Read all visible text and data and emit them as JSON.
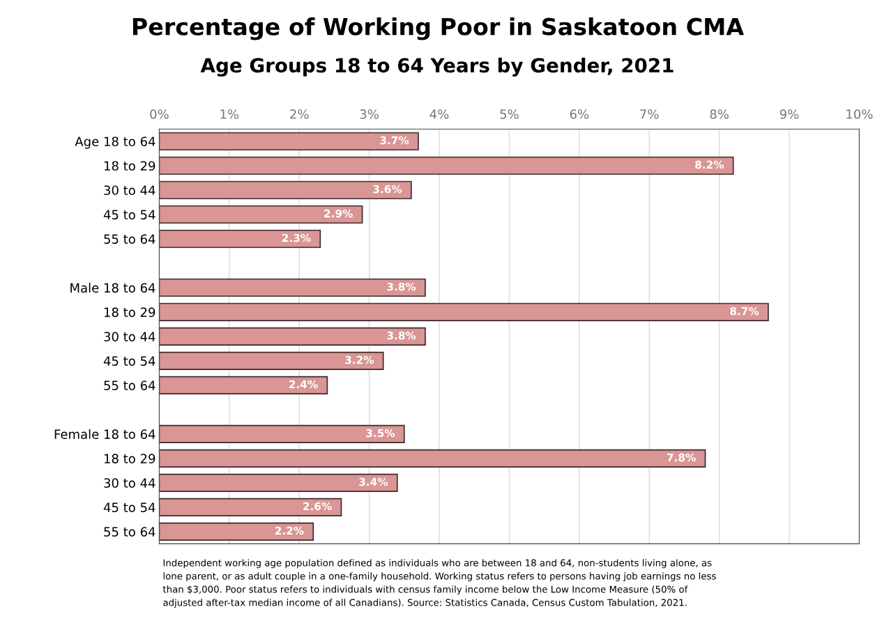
{
  "chart_data": {
    "type": "bar",
    "orientation": "horizontal",
    "title": "Percentage of Working Poor in Saskatoon CMA",
    "subtitle": "Age Groups 18 to 64 Years by Gender, 2021",
    "categories": [
      "Age 18 to 64",
      "18 to 29",
      "30 to 44",
      "45 to 54",
      "55 to 64",
      null,
      "Male 18 to 64",
      "18 to 29",
      "30 to 44",
      "45 to 54",
      "55 to 64",
      null,
      "Female 18 to 64",
      "18 to 29",
      "30 to 44",
      "45 to 54",
      "55 to 64"
    ],
    "values": [
      3.7,
      8.2,
      3.6,
      2.9,
      2.3,
      null,
      3.8,
      8.7,
      3.8,
      3.2,
      2.4,
      null,
      3.5,
      7.8,
      3.4,
      2.6,
      2.2
    ],
    "value_labels": [
      "3.7%",
      "8.2%",
      "3.6%",
      "2.9%",
      "2.3%",
      null,
      "3.8%",
      "8.7%",
      "3.8%",
      "3.2%",
      "2.4%",
      null,
      "3.5%",
      "7.8%",
      "3.4%",
      "2.6%",
      "2.2%"
    ],
    "color": "#d99694",
    "xlim": [
      0,
      10
    ],
    "xticks": [
      {
        "value": 0,
        "label": "0%"
      },
      {
        "value": 1,
        "label": "1%"
      },
      {
        "value": 2,
        "label": "2%"
      },
      {
        "value": 3,
        "label": "3%"
      },
      {
        "value": 4,
        "label": "4%"
      },
      {
        "value": 5,
        "label": "5%"
      },
      {
        "value": 6,
        "label": "6%"
      },
      {
        "value": 7,
        "label": "7%"
      },
      {
        "value": 8,
        "label": "8%"
      },
      {
        "value": 9,
        "label": "9%"
      },
      {
        "value": 10,
        "label": "10%"
      }
    ],
    "grid": "x",
    "annotations": [
      "Independent working age population defined as individuals who are between 18 and 64, non-students living alone, as\nlone parent, or as adult couple in a one-family household. Working status refers to persons having job earnings no less\nthan $3,000. Poor status refers to individuals with census family income below the Low Income Measure (50% of\nadjusted after-tax median income of all Canadians). Source: Statistics Canada, Census Custom Tabulation, 2021."
    ]
  }
}
